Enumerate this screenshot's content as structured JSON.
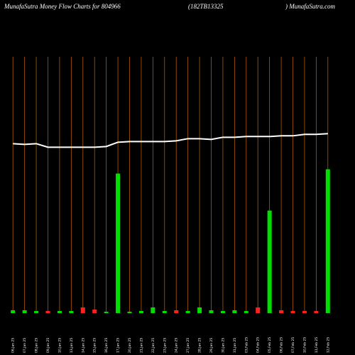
{
  "chart_data": {
    "type": "bar",
    "title": "MunafaSutra  Money Flow  Charts for 804966",
    "subtitle": "(182TB13325",
    "source": ") MunafaSutra.com",
    "categories": [
      "06,Jan 25",
      "07,Jan 25",
      "08,Jan 25",
      "09,Jan 25",
      "10,Jan 25",
      "13,Jan 25",
      "14,Jan 25",
      "15,Jan 25",
      "16,Jan 25",
      "17,Jan 25",
      "20,Jan 25",
      "21,Jan 25",
      "22,Jan 25",
      "23,Jan 25",
      "24,Jan 25",
      "27,Jan 25",
      "28,Jan 25",
      "29,Jan 25",
      "30,Jan 25",
      "31,Jan 25",
      "03,Feb 25",
      "04,Feb 25",
      "05,Feb 25",
      "06,Feb 25",
      "07,Feb 25",
      "10,Feb 25",
      "11,Feb 25",
      "12,Feb 25"
    ],
    "values": [
      4,
      4,
      3,
      3,
      3,
      3,
      8,
      5,
      2,
      196,
      2,
      3,
      8,
      3,
      4,
      3,
      8,
      4,
      3,
      4,
      3,
      8,
      144,
      4,
      3,
      3,
      3,
      202
    ],
    "colors": [
      "#00e000",
      "#00e000",
      "#00e000",
      "#ff2020",
      "#00e000",
      "#00e000",
      "#ff2020",
      "#ff2020",
      "#00e000",
      "#00e000",
      "#00e000",
      "#00e000",
      "#00e000",
      "#00e000",
      "#ff2020",
      "#00e000",
      "#00e000",
      "#00e000",
      "#00e000",
      "#00e000",
      "#00e000",
      "#ff2020",
      "#00e000",
      "#ff2020",
      "#ff2020",
      "#ff2020",
      "#ff2020",
      "#00e000"
    ],
    "line": {
      "color": "#ffffff",
      "values": [
        238,
        237,
        238,
        233,
        233,
        233,
        233,
        233,
        234,
        240,
        241,
        241,
        241,
        241,
        242,
        245,
        245,
        244,
        247,
        247,
        248,
        248,
        248,
        249,
        249,
        251,
        251,
        252
      ]
    },
    "gridline_color": "#b05a00",
    "ylim": [
      0,
      360
    ]
  }
}
